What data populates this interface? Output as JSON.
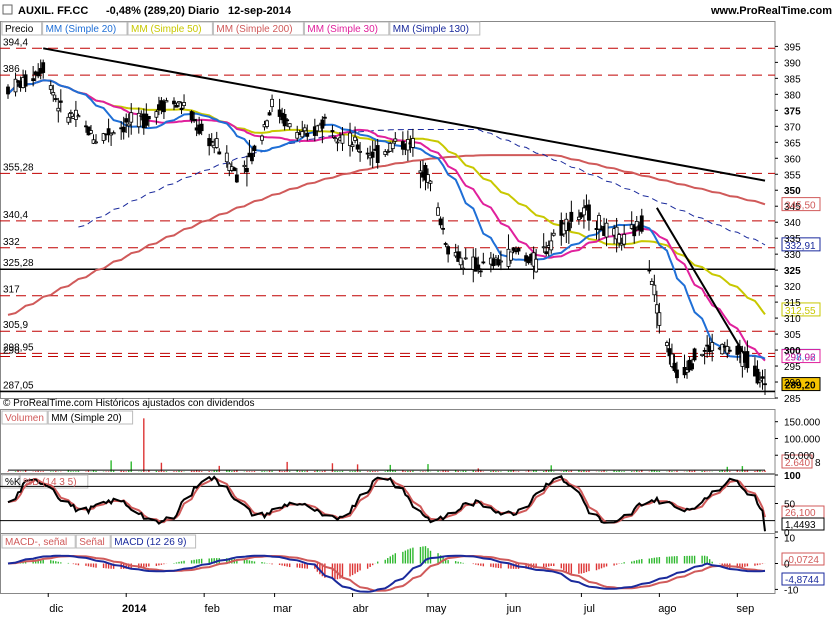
{
  "header": {
    "ticker": "AUXIL. FF.CC",
    "change": "-0,48% (289,20)",
    "period": "Diario",
    "date": "12-sep-2014",
    "site": "www.ProRealTime.com"
  },
  "price_panel": {
    "legend": [
      "Precio",
      "MM (Simple 20)",
      "MM (Simple 50)",
      "MM (Simple 200)",
      "MM (Simple 30)",
      "MM (Simple 130)"
    ],
    "legend_colors": [
      "#000000",
      "#1f6fd6",
      "#c8c800",
      "#d05a5a",
      "#e0209c",
      "#1a2a9c"
    ],
    "footer": "© ProRealTime.com  Históricos ajustados con dividendos",
    "level_labels": [
      "394,4",
      "386",
      "355,28",
      "340,4",
      "332",
      "325,28",
      "317",
      "305,9",
      "298,95",
      "298",
      "287,05"
    ],
    "level_values": [
      394.4,
      386,
      355.28,
      340.4,
      332,
      325.28,
      317,
      305.9,
      298.95,
      298,
      287.05
    ],
    "axis_ticks": [
      "395",
      "390",
      "385",
      "380",
      "375",
      "370",
      "365",
      "360",
      "355",
      "350",
      "345",
      "340",
      "335",
      "330",
      "325",
      "320",
      "315",
      "310",
      "305",
      "300",
      "295",
      "290",
      "285"
    ],
    "tags": [
      {
        "text": "345,50",
        "color": "#d05a5a",
        "value": 345.5
      },
      {
        "text": "332,91",
        "color": "#1a2a9c",
        "value": 332.91
      },
      {
        "text": "312,55",
        "color": "#c8c800",
        "value": 312.55
      },
      {
        "text": "298,02",
        "color": "#1f6fd6",
        "value": 298.02
      },
      {
        "text": "297,96",
        "color": "#e0209c",
        "value": 297.96
      },
      {
        "text": "289,20",
        "color": "#000000",
        "value": 289.2,
        "fill": "#f5c400"
      }
    ]
  },
  "volume_panel": {
    "legend": [
      "Volumen",
      "MM (Simple 20)"
    ],
    "axis_ticks": [
      "150.000",
      "100.000",
      "50.000"
    ],
    "tags": [
      {
        "text": "2.640",
        "color": "#d05a5a"
      },
      {
        "text": "8",
        "color": "#000000"
      }
    ]
  },
  "stoch_panel": {
    "legend": [
      "%K",
      "%D (14 3 5)"
    ],
    "axis_ticks": [
      "100",
      "50",
      "0"
    ],
    "tags": [
      {
        "text": "26,100",
        "color": "#d05a5a"
      },
      {
        "text": "1,4493",
        "color": "#000000"
      }
    ]
  },
  "macd_panel": {
    "legend": [
      "MACD-, señal",
      "Señal",
      "MACD (12 26 9)"
    ],
    "axis_ticks": [
      "10",
      "0",
      "-10"
    ],
    "tags": [
      {
        "text": "-0,0724",
        "color": "#d05a5a"
      },
      {
        "text": "-4,8744",
        "color": "#1a2a9c"
      }
    ]
  },
  "x_axis": [
    "dic",
    "2014",
    "feb",
    "mar",
    "abr",
    "may",
    "jun",
    "jul",
    "ago",
    "sep"
  ],
  "chart_data": {
    "type": "candlestick",
    "title": "AUXIL. FF.CC",
    "ylim": [
      285,
      397
    ],
    "y_scale": "linear",
    "x_range": [
      "2013-11-15",
      "2014-09-12"
    ],
    "grid": false,
    "legend_position": "top-left",
    "close_series": [
      [
        "2013-11-15",
        382
      ],
      [
        "2013-11-22",
        384
      ],
      [
        "2013-11-29",
        389
      ],
      [
        "2013-12-06",
        375
      ],
      [
        "2013-12-13",
        372
      ],
      [
        "2013-12-20",
        366
      ],
      [
        "2013-12-27",
        369
      ],
      [
        "2014-01-03",
        371
      ],
      [
        "2014-01-10",
        373
      ],
      [
        "2014-01-17",
        378
      ],
      [
        "2014-01-24",
        376
      ],
      [
        "2014-01-31",
        368
      ],
      [
        "2014-02-07",
        363
      ],
      [
        "2014-02-14",
        355
      ],
      [
        "2014-02-21",
        362
      ],
      [
        "2014-02-28",
        377
      ],
      [
        "2014-03-07",
        370
      ],
      [
        "2014-03-14",
        366
      ],
      [
        "2014-03-21",
        372
      ],
      [
        "2014-03-28",
        367
      ],
      [
        "2014-04-04",
        363
      ],
      [
        "2014-04-11",
        361
      ],
      [
        "2014-04-18",
        365
      ],
      [
        "2014-04-25",
        364
      ],
      [
        "2014-05-02",
        352
      ],
      [
        "2014-05-09",
        332
      ],
      [
        "2014-05-16",
        327
      ],
      [
        "2014-05-23",
        326
      ],
      [
        "2014-05-30",
        328
      ],
      [
        "2014-06-06",
        331
      ],
      [
        "2014-06-13",
        327
      ],
      [
        "2014-06-20",
        336
      ],
      [
        "2014-06-27",
        341
      ],
      [
        "2014-07-04",
        343
      ],
      [
        "2014-07-11",
        337
      ],
      [
        "2014-07-18",
        334
      ],
      [
        "2014-07-25",
        340
      ],
      [
        "2014-08-01",
        310
      ],
      [
        "2014-08-08",
        292
      ],
      [
        "2014-08-15",
        298
      ],
      [
        "2014-08-22",
        301
      ],
      [
        "2014-08-29",
        300
      ],
      [
        "2014-09-05",
        297
      ],
      [
        "2014-09-12",
        289.2
      ]
    ],
    "moving_averages": [
      {
        "name": "MM (Simple 20)",
        "last": 298.02
      },
      {
        "name": "MM (Simple 50)",
        "last": 312.55
      },
      {
        "name": "MM (Simple 200)",
        "last": 345.5
      },
      {
        "name": "MM (Simple 30)",
        "last": 297.96
      },
      {
        "name": "MM (Simple 130)",
        "last": 332.91
      }
    ],
    "horizontal_levels": [
      394.4,
      386,
      355.28,
      340.4,
      332,
      325.28,
      317,
      305.9,
      298.95,
      298,
      287.05
    ],
    "trendlines": [
      {
        "from": [
          "2013-11-29",
          394.4
        ],
        "to": [
          "2014-09-12",
          353
        ]
      },
      {
        "from": [
          "2014-07-31",
          344.5
        ],
        "to": [
          "2014-09-05",
          297
        ]
      }
    ],
    "indicators": {
      "volume_ma20_last": 2640,
      "stochastic_d_last": 26.1,
      "stochastic_k_last": 1.4493,
      "macd_signal_last": -0.0724,
      "macd_last": -4.8744
    }
  }
}
